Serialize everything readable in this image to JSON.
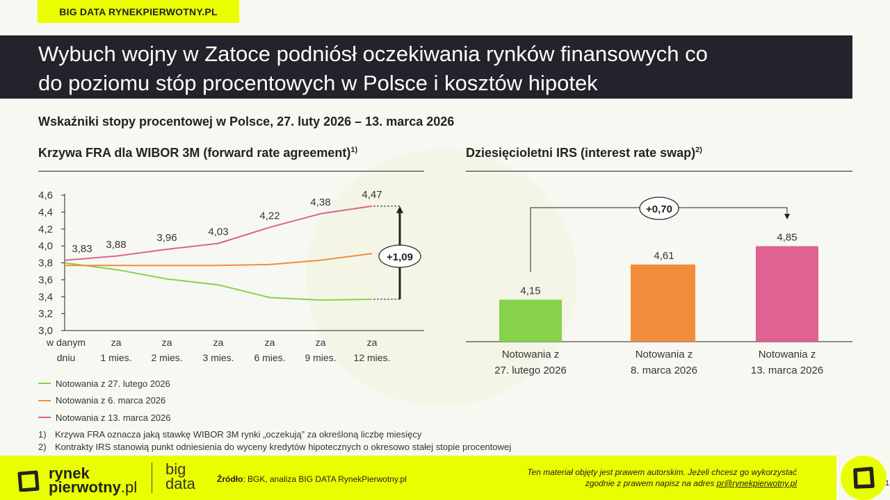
{
  "header": {
    "badge": "BIG DATA RYNEKPIERWOTNY.PL",
    "title_line1": "Wybuch wojny w Zatoce podniósł oczekiwania rynków finansowych co",
    "title_line2": "do poziomu stóp procentowych w Polsce i kosztów hipotek",
    "subtitle": "Wskaźniki stopy procentowej w Polsce, 27. luty 2026 – 13. marca 2026"
  },
  "left_panel": {
    "title": "Krzywa FRA dla WIBOR 3M (forward rate agreement)",
    "title_sup": "1)",
    "annotation": "+1,09",
    "legend": [
      {
        "label": "Notowania z 27. lutego 2026",
        "color": "#86d24a"
      },
      {
        "label": "Notowania z 6. marca 2026",
        "color": "#f08c3a"
      },
      {
        "label": "Notowania z 13. marca 2026",
        "color": "#d9628f"
      }
    ]
  },
  "right_panel": {
    "title": "Dziesięcioletni IRS (interest rate swap)",
    "title_sup": "2)",
    "annotation": "+0,70"
  },
  "footnotes": [
    {
      "num": "1)",
      "text": "Krzywa FRA oznacza jaką stawkę WIBOR 3M rynki „oczekują” za określoną liczbę miesięcy"
    },
    {
      "num": "2)",
      "text": "Kontrakty IRS stanowią punkt odniesienia do wyceny kredytów hipotecznych o okresowo stałej stopie procentowej"
    }
  ],
  "footer": {
    "logo_line1": "rynek",
    "logo_line2": "pierwotny",
    "logo_suffix": ".pl",
    "bigdata_line1": "big",
    "bigdata_line2": "data",
    "source_label": "Źródło",
    "source_text": ": BGK, analiza BIG DATA RynekPierwotny.pl",
    "copyright_line1": "Ten materiał objęty jest prawem autorskim. Jeżeli chcesz go wykorzystać",
    "copyright_line2_prefix": "zgodnie z prawem napisz na adres ",
    "copyright_email": "pr@rynekpierwotny.pl",
    "page_number": "1"
  },
  "colors": {
    "accent_yellow": "#e9ff00",
    "title_bg": "#22232b",
    "green": "#86d24a",
    "orange": "#f08c3a",
    "pink": "#df6292"
  },
  "chart_data": [
    {
      "type": "line",
      "title": "Krzywa FRA dla WIBOR 3M (forward rate agreement)",
      "xlabel": "",
      "ylabel": "",
      "categories": [
        "w danym dniu",
        "za 1 mies.",
        "za 2 mies.",
        "za 3 mies.",
        "za 6 mies.",
        "za 9 mies.",
        "za 12 mies."
      ],
      "yticks": [
        "3,0",
        "3,2",
        "3,4",
        "3,6",
        "3,8",
        "4,0",
        "4,2",
        "4,4",
        "4,6"
      ],
      "ylim": [
        3.0,
        4.6
      ],
      "grid": false,
      "legend_position": "bottom",
      "series": [
        {
          "name": "Notowania z 27. lutego 2026",
          "color": "#86d24a",
          "values": [
            3.8,
            3.72,
            3.61,
            3.54,
            3.39,
            3.36,
            3.37
          ]
        },
        {
          "name": "Notowania z 6. marca 2026",
          "color": "#f08c3a",
          "values": [
            3.77,
            3.77,
            3.77,
            3.77,
            3.78,
            3.83,
            3.91
          ]
        },
        {
          "name": "Notowania z 13. marca 2026",
          "color": "#d9628f",
          "values": [
            3.83,
            3.88,
            3.96,
            4.03,
            4.22,
            4.38,
            4.47
          ],
          "labels": [
            "3,83",
            "3,88",
            "3,96",
            "4,03",
            "4,22",
            "4,38",
            "4,47"
          ]
        }
      ],
      "annotations": [
        {
          "text": "+1,09",
          "from": 3.37,
          "to": 4.47,
          "at": "za 12 mies."
        }
      ]
    },
    {
      "type": "bar",
      "title": "Dziesięcioletni IRS (interest rate swap)",
      "categories": [
        "Notowania z 27. lutego 2026",
        "Notowania z 8. marca 2026",
        "Notowania z 13. marca 2026"
      ],
      "category_lines": [
        [
          "Notowania z",
          "27. lutego 2026"
        ],
        [
          "Notowania z",
          "8. marca 2026"
        ],
        [
          "Notowania z",
          "13. marca 2026"
        ]
      ],
      "values": [
        4.15,
        4.61,
        4.85
      ],
      "labels": [
        "4,15",
        "4,61",
        "4,85"
      ],
      "colors": [
        "#86d24a",
        "#f08c3a",
        "#df6292"
      ],
      "baseline": 3.6,
      "grid": false,
      "annotations": [
        {
          "text": "+0,70",
          "from": "Notowania z 27. lutego 2026",
          "to": "Notowania z 13. marca 2026"
        }
      ]
    }
  ]
}
